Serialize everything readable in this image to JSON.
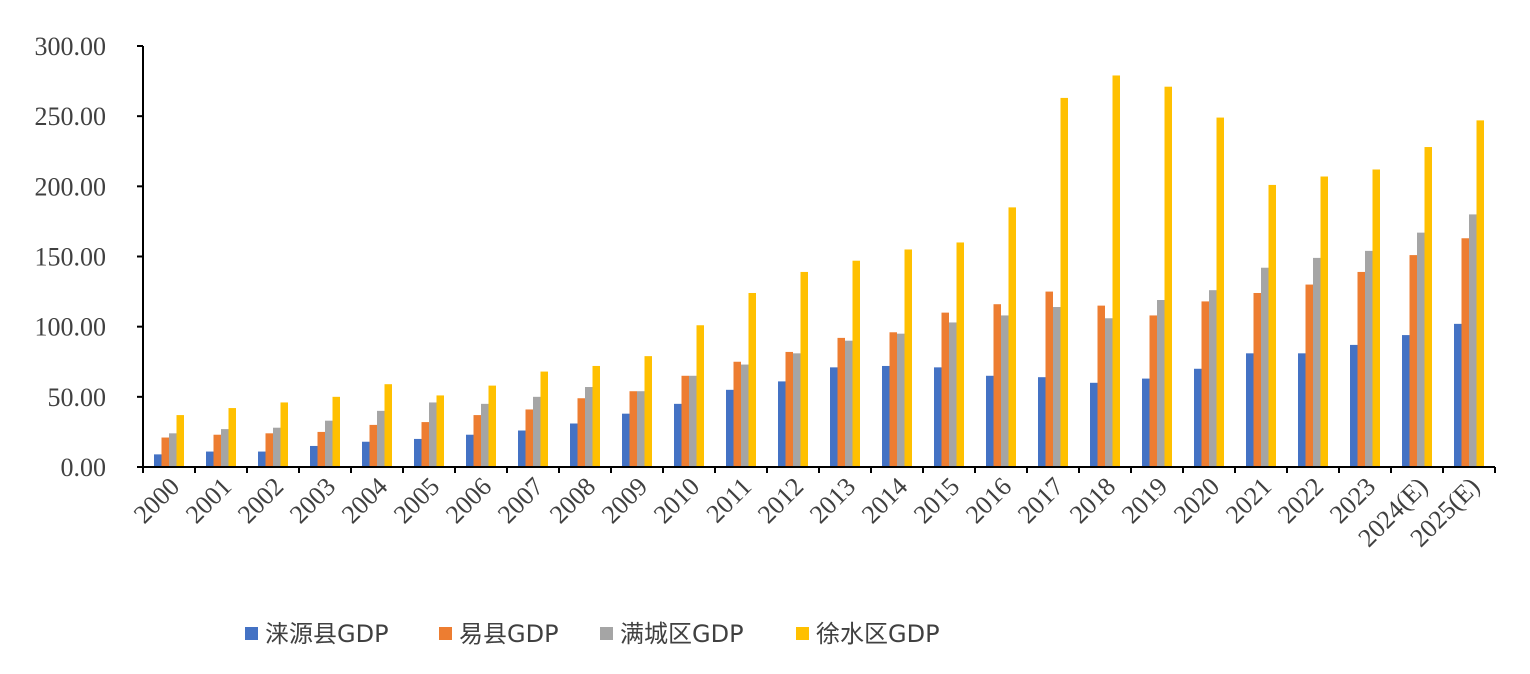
{
  "chart_data": {
    "type": "bar",
    "categories": [
      "2000",
      "2001",
      "2002",
      "2003",
      "2004",
      "2005",
      "2006",
      "2007",
      "2008",
      "2009",
      "2010",
      "2011",
      "2012",
      "2013",
      "2014",
      "2015",
      "2016",
      "2017",
      "2018",
      "2019",
      "2020",
      "2021",
      "2022",
      "2023",
      "2024(E)",
      "2025(E)"
    ],
    "series": [
      {
        "name": "涞源县GDP",
        "color": "#4472C4",
        "values": [
          9,
          11,
          11,
          15,
          18,
          20,
          23,
          26,
          31,
          38,
          45,
          55,
          61,
          71,
          72,
          71,
          65,
          64,
          60,
          63,
          70,
          81,
          81,
          87,
          94,
          102
        ]
      },
      {
        "name": "易县GDP",
        "color": "#ED7D31",
        "values": [
          21,
          23,
          24,
          25,
          30,
          32,
          37,
          41,
          49,
          54,
          65,
          75,
          82,
          92,
          96,
          110,
          116,
          125,
          115,
          108,
          118,
          124,
          130,
          139,
          151,
          163
        ]
      },
      {
        "name": "满城区GDP",
        "color": "#A5A5A5",
        "values": [
          24,
          27,
          28,
          33,
          40,
          46,
          45,
          50,
          57,
          54,
          65,
          73,
          81,
          90,
          95,
          103,
          108,
          114,
          106,
          119,
          126,
          142,
          149,
          154,
          167,
          180
        ]
      },
      {
        "name": "徐水区GDP",
        "color": "#FFC000",
        "values": [
          37,
          42,
          46,
          50,
          59,
          51,
          58,
          68,
          72,
          79,
          101,
          124,
          139,
          147,
          155,
          160,
          185,
          263,
          279,
          271,
          249,
          201,
          207,
          212,
          228,
          247
        ]
      }
    ],
    "ylim": [
      0,
      300
    ],
    "yticks": [
      "0.00",
      "50.00",
      "100.00",
      "150.00",
      "200.00",
      "250.00",
      "300.00"
    ],
    "ytick_values": [
      0,
      50,
      100,
      150,
      200,
      250,
      300
    ],
    "legend_position": "bottom",
    "grid": false,
    "title": "",
    "xlabel": "",
    "ylabel": ""
  }
}
